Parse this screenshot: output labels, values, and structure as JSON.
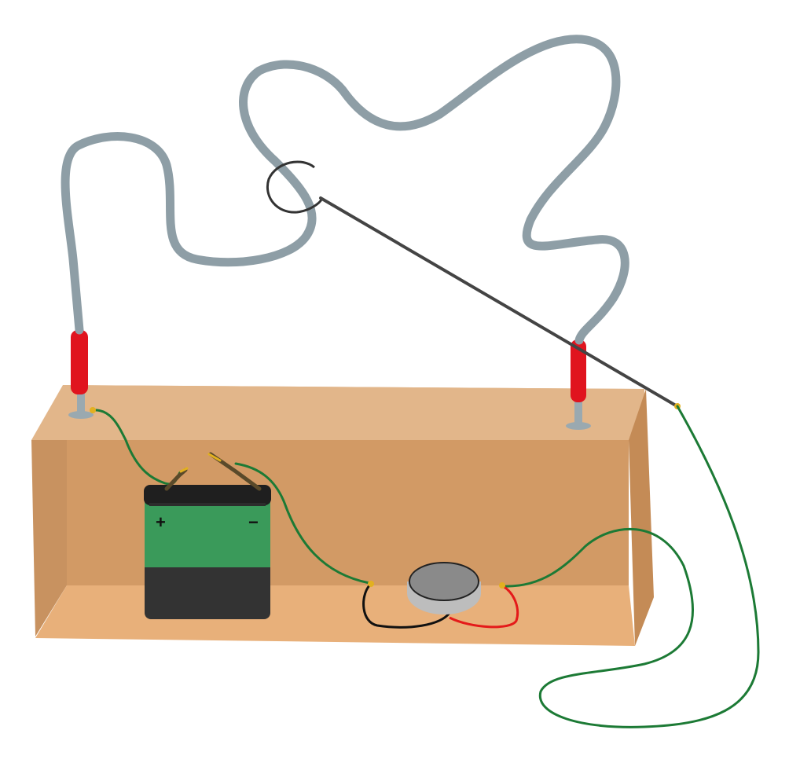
{
  "battery": {
    "positive_label": "+",
    "negative_label": "−"
  },
  "colors": {
    "background": "#ffffff",
    "box_front": "#d49e6a",
    "box_top": "#e2b68a",
    "box_floor": "#e8b07a",
    "box_side": "#c89260",
    "maze_wire": "#8e9ea6",
    "red_handle": "#e0141e",
    "post": "#9aa9b0",
    "green_wire": "#1c7a35",
    "probe_rod": "#444444",
    "battery_green": "#3a9a5a",
    "battery_dark": "#333333",
    "buzzer_body": "#8a8a8a",
    "buzzer_rim": "#bdbdbd",
    "buzzer_red_lead": "#e41a1a",
    "buzzer_black_lead": "#111111",
    "connector_gold": "#e2b020"
  }
}
